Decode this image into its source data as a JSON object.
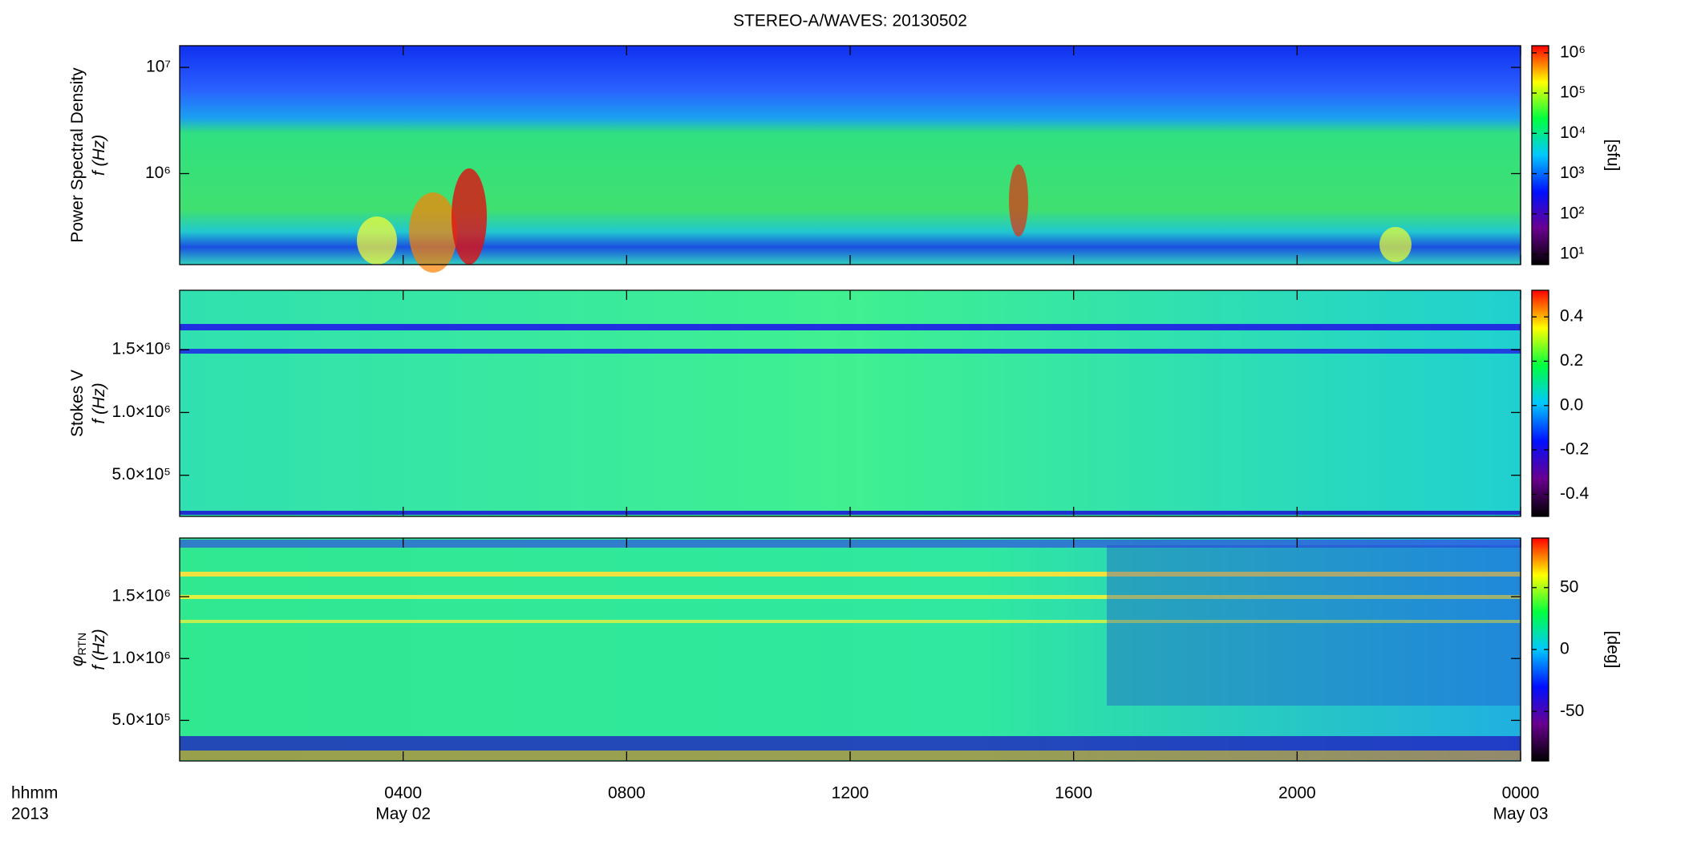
{
  "colormap": [
    "#000000",
    "#6a0090",
    "#0010ff",
    "#00c8ff",
    "#00ff40",
    "#ffff00",
    "#ff0000"
  ],
  "chart_data": [
    {
      "type": "heatmap",
      "title": "STEREO-A/WAVES: 20130502",
      "ylabel": [
        "Power Spectral Density",
        "f (Hz)"
      ],
      "ylog": true,
      "ylim": [
        139000,
        16000000
      ],
      "yticks": [
        {
          "value": 1000000,
          "label": "10⁶"
        },
        {
          "value": 10000000,
          "label": "10⁷"
        }
      ],
      "xlim": [
        0,
        24
      ],
      "clog": true,
      "clim": [
        5.5,
        1500000
      ],
      "cticks": [
        {
          "value": 10,
          "label": "10¹"
        },
        {
          "value": 100,
          "label": "10²"
        },
        {
          "value": 1000,
          "label": "10³"
        },
        {
          "value": 10000,
          "label": "10⁴"
        },
        {
          "value": 100000,
          "label": "10⁵"
        },
        {
          "value": 1000000,
          "label": "10⁶"
        }
      ],
      "clabel": "[sfu]"
    },
    {
      "type": "heatmap",
      "ylabel": [
        "Stokes V",
        "f (Hz)"
      ],
      "ylog": false,
      "ylim": [
        172000,
        1974000
      ],
      "yticks": [
        {
          "value": 500000,
          "label": "5.0×10⁵"
        },
        {
          "value": 1000000,
          "label": "1.0×10⁶"
        },
        {
          "value": 1500000,
          "label": "1.5×10⁶"
        }
      ],
      "xlim": [
        0,
        24
      ],
      "clog": false,
      "clim": [
        -0.5,
        0.52
      ],
      "cticks": [
        -0.4,
        -0.2,
        {
          "value": 0,
          "label": "0.0"
        },
        0.2,
        0.4
      ]
    },
    {
      "type": "heatmap",
      "ylabel": [
        "φ",
        "f (Hz)"
      ],
      "ylabel_subscript": "RTN",
      "ylog": false,
      "ylim": [
        172000,
        1974000
      ],
      "yticks": [
        {
          "value": 500000,
          "label": "5.0×10⁵"
        },
        {
          "value": 1000000,
          "label": "1.0×10⁶"
        },
        {
          "value": 1500000,
          "label": "1.5×10⁶"
        }
      ],
      "xlim": [
        0,
        24
      ],
      "xticks": [
        {
          "value": 4,
          "label": "0400"
        },
        {
          "value": 8,
          "label": "0800"
        },
        {
          "value": 12,
          "label": "1200"
        },
        {
          "value": 16,
          "label": "1600"
        },
        {
          "value": 20,
          "label": "2000"
        },
        {
          "value": 24,
          "label": "0000"
        }
      ],
      "xdates": [
        {
          "value": 4,
          "label": "May 02"
        },
        {
          "value": 24,
          "label": "May 03"
        }
      ],
      "xlabel": [
        "hhmm",
        "2013"
      ],
      "clog": false,
      "clim": [
        -90,
        90
      ],
      "cticks": [
        -50,
        0,
        50
      ],
      "clabel": "[deg]"
    }
  ]
}
